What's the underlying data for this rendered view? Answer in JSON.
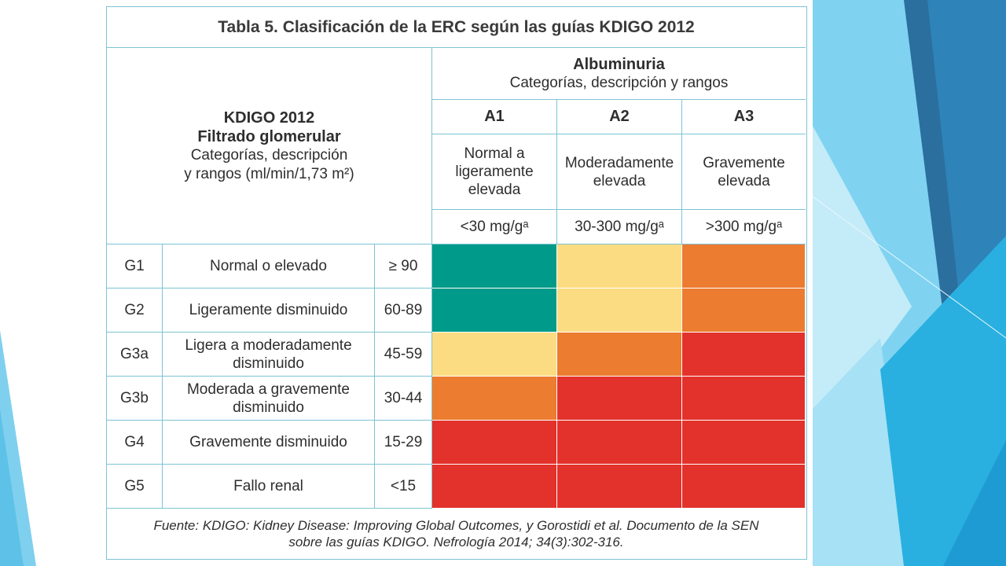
{
  "title": "Tabla 5. Clasificación de la ERC según las guías KDIGO 2012",
  "left_header": {
    "line1": "KDIGO 2012",
    "line2": "Filtrado glomerular",
    "line3": "Categorías, descripción",
    "line4": "y rangos (ml/min/1,73 m²)"
  },
  "albuminuria": {
    "title": "Albuminuria",
    "subtitle": "Categorías, descripción y rangos",
    "columns": [
      {
        "code": "A1",
        "desc_line1": "Normal a",
        "desc_line2": "ligeramente",
        "desc_line3": "elevada",
        "range": "<30 mg/gᵃ"
      },
      {
        "code": "A2",
        "desc_line1": "Moderadamente",
        "desc_line2": "elevada",
        "desc_line3": "",
        "range": "30-300 mg/gᵃ"
      },
      {
        "code": "A3",
        "desc_line1": "Gravemente",
        "desc_line2": "elevada",
        "desc_line3": "",
        "range": ">300 mg/gᵃ"
      }
    ]
  },
  "rows": [
    {
      "code": "G1",
      "desc1": "Normal o elevado",
      "desc2": "",
      "range": "≥ 90",
      "risk": [
        "green",
        "yellow",
        "orange"
      ]
    },
    {
      "code": "G2",
      "desc1": "Ligeramente disminuido",
      "desc2": "",
      "range": "60-89",
      "risk": [
        "green",
        "yellow",
        "orange"
      ]
    },
    {
      "code": "G3a",
      "desc1": "Ligera a moderadamente",
      "desc2": "disminuido",
      "range": "45-59",
      "risk": [
        "yellow",
        "orange",
        "red"
      ]
    },
    {
      "code": "G3b",
      "desc1": "Moderada a gravemente",
      "desc2": "disminuido",
      "range": "30-44",
      "risk": [
        "orange",
        "red",
        "red"
      ]
    },
    {
      "code": "G4",
      "desc1": "Gravemente disminuido",
      "desc2": "",
      "range": "15-29",
      "risk": [
        "red",
        "red",
        "red"
      ]
    },
    {
      "code": "G5",
      "desc1": "Fallo renal",
      "desc2": "",
      "range": "<15",
      "risk": [
        "red",
        "red",
        "red"
      ]
    }
  ],
  "risk_colors": {
    "green": "#009a8a",
    "yellow": "#fcdc82",
    "orange": "#ec7c30",
    "red": "#e3322b"
  },
  "footer": {
    "line1": "Fuente: KDIGO: Kidney Disease: Improving Global Outcomes, y Gorostidi et al. Documento de la SEN",
    "line2": "sobre las guías KDIGO. Nefrología 2014; 34(3):302-316."
  }
}
